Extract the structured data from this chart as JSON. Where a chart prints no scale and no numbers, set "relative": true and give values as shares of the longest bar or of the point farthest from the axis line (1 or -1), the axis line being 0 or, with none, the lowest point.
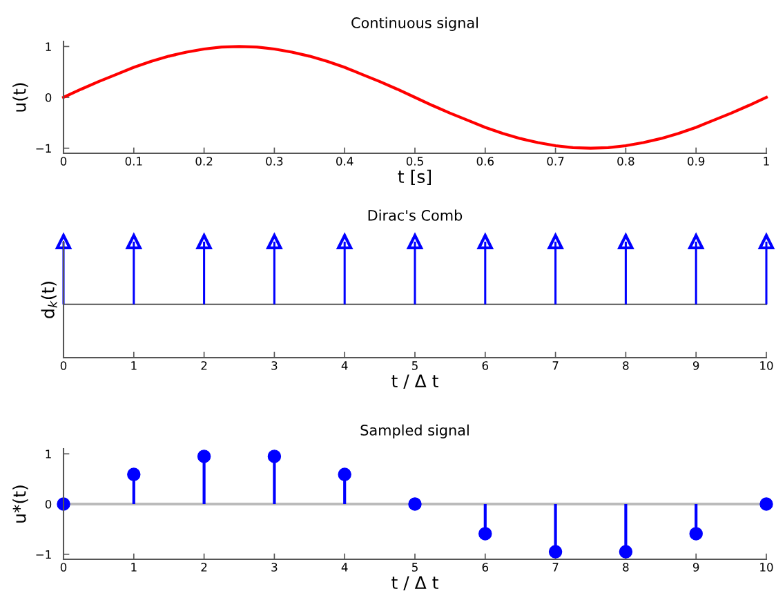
{
  "chart_data": [
    {
      "type": "line",
      "title": "Continuous signal",
      "xlabel": "t [s]",
      "ylabel": "u(t)",
      "x": [
        0,
        0.025,
        0.05,
        0.075,
        0.1,
        0.125,
        0.15,
        0.175,
        0.2,
        0.225,
        0.25,
        0.275,
        0.3,
        0.325,
        0.35,
        0.375,
        0.4,
        0.425,
        0.45,
        0.475,
        0.5,
        0.525,
        0.55,
        0.575,
        0.6,
        0.625,
        0.65,
        0.675,
        0.7,
        0.725,
        0.75,
        0.775,
        0.8,
        0.825,
        0.85,
        0.875,
        0.9,
        0.925,
        0.95,
        0.975,
        1
      ],
      "series": [
        {
          "color": "#ff0000",
          "values": [
            0,
            0.16,
            0.31,
            0.45,
            0.59,
            0.71,
            0.81,
            0.89,
            0.95,
            0.99,
            1,
            0.99,
            0.95,
            0.89,
            0.81,
            0.71,
            0.59,
            0.45,
            0.31,
            0.16,
            0,
            -0.16,
            -0.31,
            -0.45,
            -0.59,
            -0.71,
            -0.81,
            -0.89,
            -0.95,
            -0.99,
            -1,
            -0.99,
            -0.95,
            -0.89,
            -0.81,
            -0.71,
            -0.59,
            -0.45,
            -0.31,
            -0.16,
            0
          ]
        }
      ],
      "xlim": [
        0,
        1
      ],
      "xticks": [
        0,
        0.1,
        0.2,
        0.3,
        0.4,
        0.5,
        0.6,
        0.7,
        0.8,
        0.9,
        1
      ],
      "ylim": [
        -1.1,
        1.1
      ],
      "yticks": [
        {
          "value": -1,
          "label": "−1"
        },
        0,
        1
      ],
      "grid": false,
      "legend": false,
      "marker": "none",
      "line_style": "solid"
    },
    {
      "type": "bar",
      "title": "Dirac's Comb",
      "xlabel": "t / Δ t",
      "ylabel": "d$_{k}$(t)",
      "categories": [
        "0",
        "1",
        "2",
        "3",
        "4",
        "5",
        "6",
        "7",
        "8",
        "9",
        "10"
      ],
      "series": [
        {
          "color": "#0000ff",
          "values": [
            1,
            1,
            1,
            1,
            1,
            1,
            1,
            1,
            1,
            1,
            1
          ]
        }
      ],
      "relative": true,
      "tick_labels": "x",
      "grid": false,
      "legend": false
    },
    {
      "type": "lollipop",
      "title": "Sampled signal",
      "xlabel": "t / Δ t",
      "ylabel": "u*(t)",
      "x": [
        0,
        1,
        2,
        3,
        4,
        5,
        6,
        7,
        8,
        9,
        10
      ],
      "series": [
        {
          "color": "#0000ff",
          "values": [
            0,
            0.59,
            0.95,
            0.95,
            0.59,
            0,
            -0.59,
            -0.95,
            -0.95,
            -0.59,
            0
          ]
        }
      ],
      "xlim": [
        0,
        10
      ],
      "xticks": [
        0,
        1,
        2,
        3,
        4,
        5,
        6,
        7,
        8,
        9,
        10
      ],
      "ylim": [
        -1.1,
        1.1
      ],
      "yticks": [
        {
          "value": -1,
          "label": "−1"
        },
        0,
        1
      ],
      "ref_lines": [
        {
          "axis": "y",
          "value": 0,
          "color": "#bbbbbb"
        }
      ],
      "grid": false,
      "legend": false,
      "marker": "circle"
    }
  ]
}
